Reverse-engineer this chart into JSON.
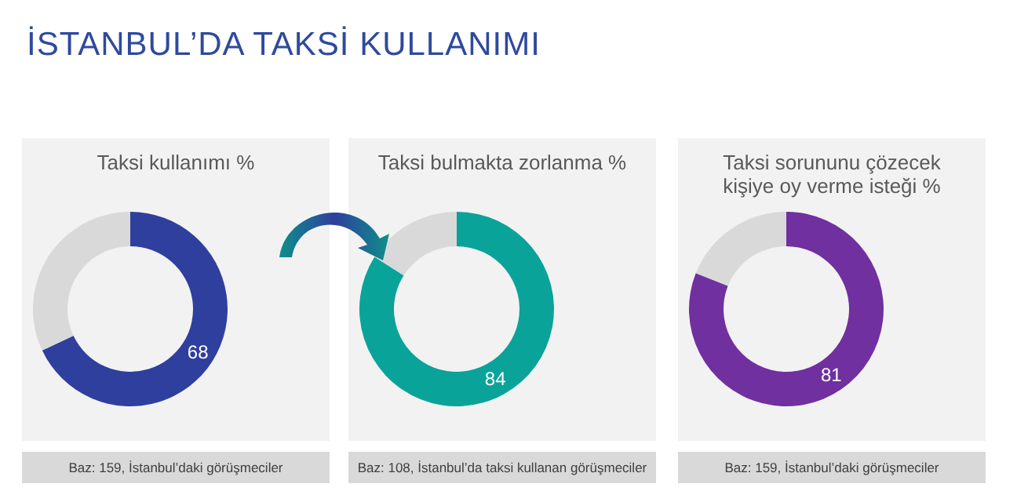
{
  "chart_data": [
    {
      "type": "other",
      "title": "İSTANBUL’DA TAKSİ KULLANIMI"
    },
    {
      "type": "donut",
      "title": "Taksi kullanımı %",
      "categories": [
        null,
        null
      ],
      "values": [
        68,
        32
      ],
      "colors": [
        "#2e3f9e",
        "#d9d9d9"
      ],
      "value_labels": [
        "68",
        null
      ],
      "annotations": [
        "Baz: 159, İstanbul’daki görüşmeciler"
      ]
    },
    {
      "type": "donut",
      "title": "Taksi bulmakta zorlanma %",
      "categories": [
        null,
        null
      ],
      "values": [
        84,
        16
      ],
      "colors": [
        "#0aa39a",
        "#d9d9d9"
      ],
      "value_labels": [
        "84",
        null
      ],
      "annotations": [
        "Baz: 108, İstanbul’da taksi kullanan görüşmeciler"
      ]
    },
    {
      "type": "donut",
      "title": "Taksi sorununu çözecek kişiye oy verme isteği %",
      "categories": [
        null,
        null
      ],
      "values": [
        81,
        19
      ],
      "colors": [
        "#7030a0",
        "#d9d9d9"
      ],
      "value_labels": [
        "81",
        null
      ],
      "annotations": [
        "Baz: 159, İstanbul’daki görüşmeciler"
      ]
    }
  ]
}
